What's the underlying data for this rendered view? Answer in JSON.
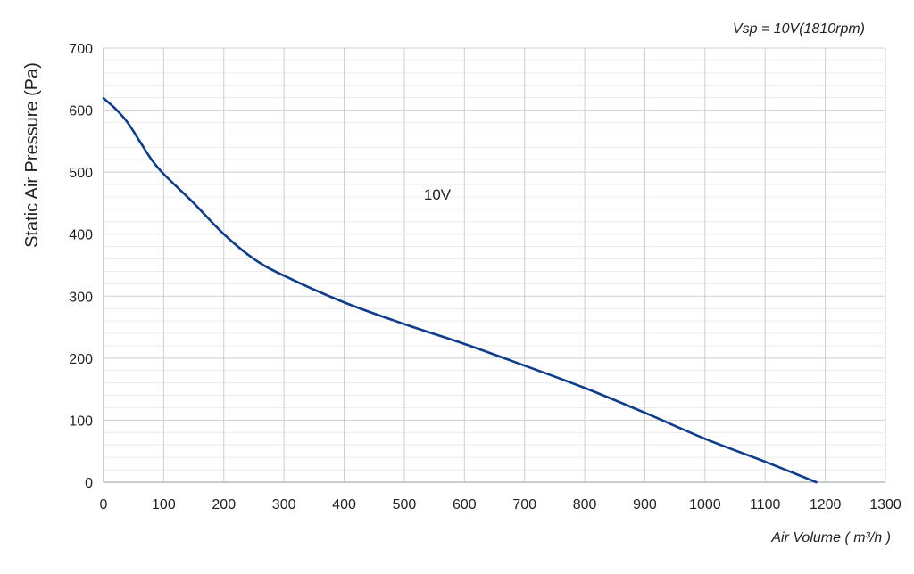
{
  "chart_data": {
    "type": "line",
    "title": "Vsp = 10V(1810rpm)",
    "xlabel": "Air Volume ( m³/h )",
    "ylabel": "Static Air Pressure  (Pa)",
    "xlim": [
      0,
      1300
    ],
    "ylim": [
      0,
      700
    ],
    "x_ticks": [
      0,
      100,
      200,
      300,
      400,
      500,
      600,
      700,
      800,
      900,
      1000,
      1100,
      1200,
      1300
    ],
    "y_ticks": [
      0,
      100,
      200,
      300,
      400,
      500,
      600,
      700
    ],
    "grid": true,
    "annotation": "10V",
    "series": [
      {
        "color": "#0d3d8c",
        "x": [
          0,
          20,
          40,
          60,
          80,
          100,
          150,
          200,
          250,
          300,
          400,
          500,
          600,
          700,
          800,
          900,
          1000,
          1100,
          1185
        ],
        "y": [
          619,
          602,
          580,
          550,
          520,
          497,
          450,
          400,
          360,
          333,
          290,
          255,
          223,
          188,
          152,
          112,
          70,
          33,
          0
        ]
      }
    ]
  }
}
